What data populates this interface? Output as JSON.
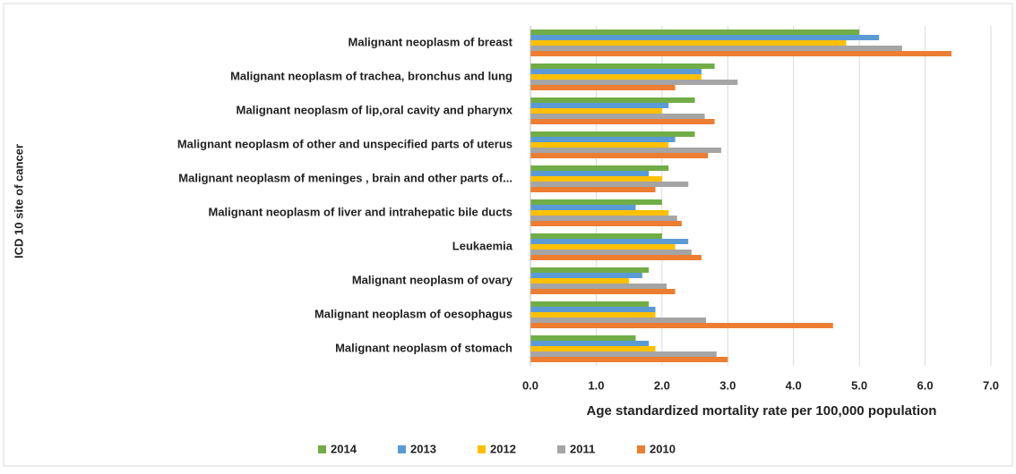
{
  "chart_data": {
    "type": "hbar",
    "ylabel": "ICD 10 site of cancer",
    "xlabel": "Age standardized mortality rate per 100,000 population",
    "categories": [
      "Malignant neoplasm of breast",
      "Malignant neoplasm of trachea, bronchus and lung",
      "Malignant neoplasm of lip,oral cavity and pharynx",
      "Malignant neoplasm of other and unspecified parts of uterus",
      "Malignant neoplasm of meninges , brain and other parts of...",
      "Malignant neoplasm of liver and intrahepatic bile ducts",
      "Leukaemia",
      "Malignant neoplasm of ovary",
      "Malignant neoplasm of oesophagus",
      "Malignant neoplasm of stomach"
    ],
    "series": [
      {
        "name": "2014",
        "color": "#70ad47",
        "values": [
          5.0,
          2.8,
          2.5,
          2.5,
          2.1,
          2.0,
          2.0,
          1.8,
          1.8,
          1.6
        ]
      },
      {
        "name": "2013",
        "color": "#5b9bd5",
        "values": [
          5.3,
          2.6,
          2.1,
          2.2,
          1.8,
          1.6,
          2.4,
          1.7,
          1.9,
          1.8
        ]
      },
      {
        "name": "2012",
        "color": "#ffc000",
        "values": [
          4.8,
          2.6,
          2.0,
          2.1,
          2.0,
          2.1,
          2.2,
          1.5,
          1.9,
          1.9
        ]
      },
      {
        "name": "2011",
        "color": "#a5a5a5",
        "values": [
          5.65,
          3.15,
          2.65,
          2.9,
          2.4,
          2.23,
          2.45,
          2.07,
          2.67,
          2.83
        ]
      },
      {
        "name": "2010",
        "color": "#ed7d31",
        "values": [
          6.4,
          2.2,
          2.8,
          2.7,
          1.9,
          2.3,
          2.6,
          2.2,
          4.6,
          3.0
        ]
      }
    ],
    "xlim": [
      0,
      7
    ],
    "xticks": [
      {
        "value": 0,
        "label": "0.0"
      },
      {
        "value": 1,
        "label": "1.0"
      },
      {
        "value": 2,
        "label": "2.0"
      },
      {
        "value": 3,
        "label": "3.0"
      },
      {
        "value": 4,
        "label": "4.0"
      },
      {
        "value": 5,
        "label": "5.0"
      },
      {
        "value": 6,
        "label": "6.0"
      },
      {
        "value": 7,
        "label": "7.0"
      }
    ],
    "grid": true,
    "legend": "bottom"
  }
}
